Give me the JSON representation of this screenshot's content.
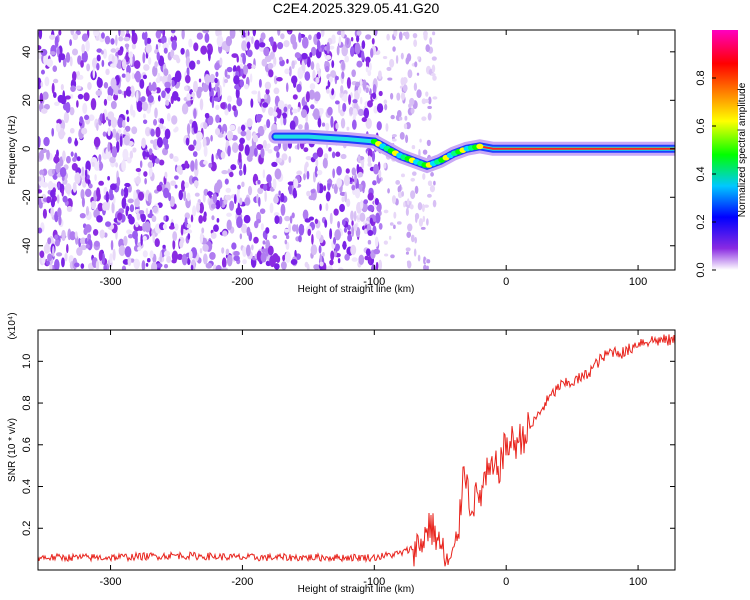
{
  "figure_title": "C2E4.2025.329.05.41.G20",
  "chart_data": [
    {
      "type": "heatmap",
      "title": "",
      "xlabel": "Height of straight line (km)",
      "ylabel": "Frequency (Hz)",
      "xlim": [
        -355,
        128
      ],
      "ylim": [
        -50,
        49
      ],
      "xticks": [
        -300,
        -200,
        -100,
        0,
        100
      ],
      "xtick_labels": [
        "-300",
        "-200",
        "-100",
        "0",
        "100"
      ],
      "yticks": [
        -40,
        -20,
        0,
        20,
        40
      ],
      "ytick_labels": [
        "-40",
        "-20",
        "0",
        "20",
        "40"
      ],
      "ridge": {
        "x": [
          -175,
          -150,
          -120,
          -100,
          -90,
          -80,
          -70,
          -60,
          -50,
          -40,
          -30,
          -20,
          -10,
          0,
          20,
          60,
          100,
          128
        ],
        "y": [
          5,
          5,
          4,
          3,
          0,
          -3,
          -5,
          -7,
          -5,
          -2,
          0,
          1,
          0,
          0,
          0,
          0,
          0,
          0
        ]
      },
      "colorbar": {
        "label": "Normalized spectral amplitude",
        "range": [
          0,
          1
        ],
        "ticks": [
          0.0,
          0.2,
          0.4,
          0.6,
          0.8
        ],
        "tick_labels": [
          "0.0",
          "0.2",
          "0.4",
          "0.6",
          "0.8"
        ],
        "colors": [
          "#ffffff",
          "#8a2be2",
          "#0000ff",
          "#00c8ff",
          "#00ff00",
          "#ffff00",
          "#ff8000",
          "#ff0000",
          "#ff00c0"
        ]
      }
    },
    {
      "type": "line",
      "title": "",
      "xlabel": "Height of straight line (km)",
      "ylabel": "SNR (10 * v/v)",
      "scale_note": "(x10⁴)",
      "xlim": [
        -355,
        128
      ],
      "ylim": [
        0,
        1.15
      ],
      "xticks": [
        -300,
        -200,
        -100,
        0,
        100
      ],
      "xtick_labels": [
        "-300",
        "-200",
        "-100",
        "0",
        "100"
      ],
      "yticks": [
        0.2,
        0.4,
        0.6,
        0.8,
        1.0
      ],
      "ytick_labels": [
        "0.2",
        "0.4",
        "0.6",
        "0.8",
        "1.0"
      ],
      "series": [
        {
          "name": "SNR",
          "color": "#e8231c",
          "x": [
            -355,
            -300,
            -250,
            -200,
            -150,
            -100,
            -80,
            -65,
            -58,
            -52,
            -45,
            -40,
            -35,
            -32,
            -28,
            -20,
            -15,
            -10,
            -5,
            0,
            10,
            20,
            30,
            40,
            50,
            60,
            70,
            80,
            90,
            100,
            110,
            128
          ],
          "y": [
            0.06,
            0.06,
            0.07,
            0.06,
            0.06,
            0.06,
            0.08,
            0.12,
            0.22,
            0.15,
            0.03,
            0.05,
            0.25,
            0.55,
            0.32,
            0.35,
            0.45,
            0.47,
            0.5,
            0.6,
            0.62,
            0.7,
            0.8,
            0.88,
            0.9,
            0.93,
            1.0,
            1.05,
            1.04,
            1.09,
            1.1,
            1.1
          ]
        }
      ]
    }
  ]
}
